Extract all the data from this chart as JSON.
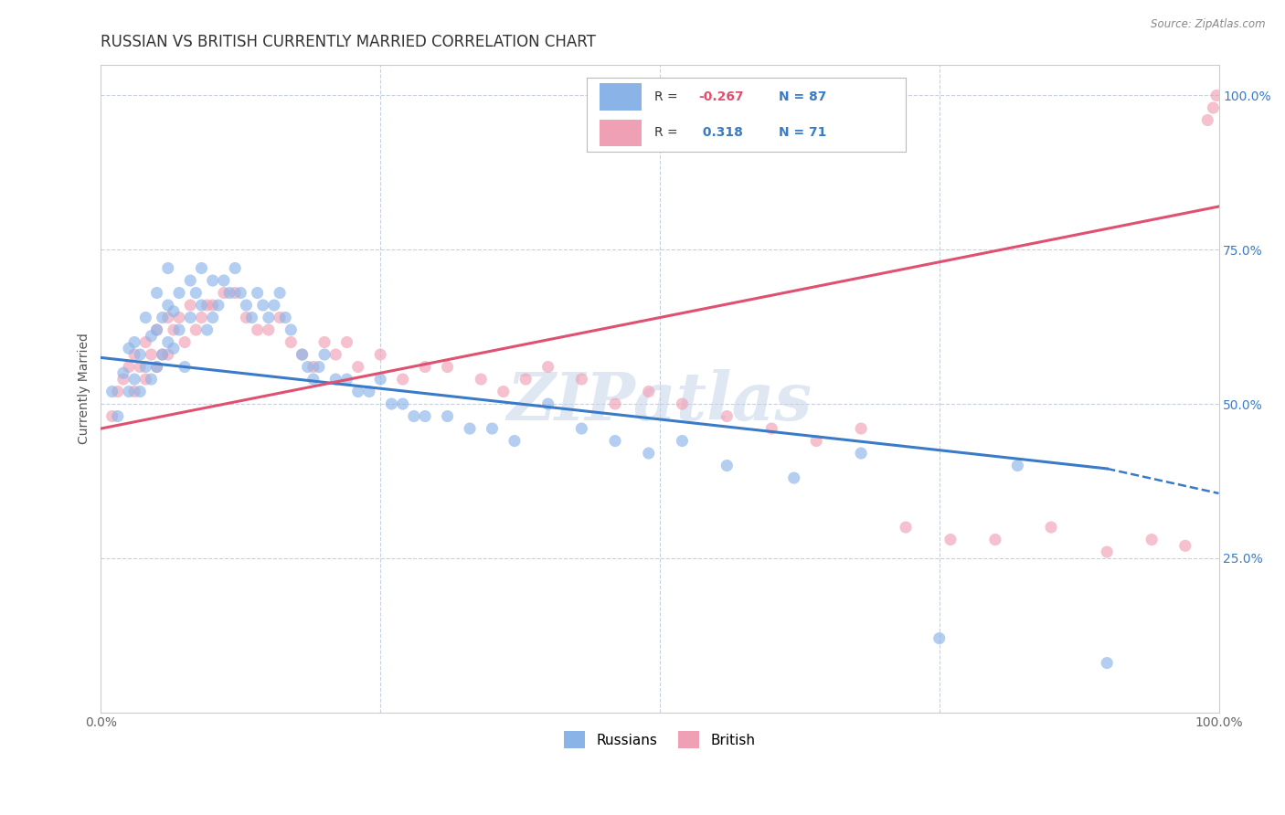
{
  "title": "RUSSIAN VS BRITISH CURRENTLY MARRIED CORRELATION CHART",
  "source": "Source: ZipAtlas.com",
  "ylabel": "Currently Married",
  "xlim": [
    0.0,
    1.0
  ],
  "ylim": [
    0.0,
    1.05
  ],
  "ytick_positions": [
    0.25,
    0.5,
    0.75,
    1.0
  ],
  "ytick_labels": [
    "25.0%",
    "50.0%",
    "75.0%",
    "100.0%"
  ],
  "xtick_positions": [
    0.0,
    0.25,
    0.5,
    0.75,
    1.0
  ],
  "xtick_labels": [
    "0.0%",
    "",
    "",
    "",
    "100.0%"
  ],
  "russian_color": "#8ab4e8",
  "british_color": "#f0a0b5",
  "russian_line_color": "#3a7bc8",
  "british_line_color": "#e05070",
  "watermark": "ZIPatlas",
  "background_color": "#ffffff",
  "grid_color": "#c8d0dc",
  "title_fontsize": 12,
  "tick_fontsize": 10,
  "dot_size": 90,
  "dot_alpha": 0.65,
  "russians_x": [
    0.01,
    0.015,
    0.02,
    0.025,
    0.025,
    0.03,
    0.03,
    0.035,
    0.035,
    0.04,
    0.04,
    0.045,
    0.045,
    0.05,
    0.05,
    0.05,
    0.055,
    0.055,
    0.06,
    0.06,
    0.06,
    0.065,
    0.065,
    0.07,
    0.07,
    0.075,
    0.08,
    0.08,
    0.085,
    0.09,
    0.09,
    0.095,
    0.1,
    0.1,
    0.105,
    0.11,
    0.115,
    0.12,
    0.125,
    0.13,
    0.135,
    0.14,
    0.145,
    0.15,
    0.155,
    0.16,
    0.165,
    0.17,
    0.18,
    0.185,
    0.19,
    0.195,
    0.2,
    0.21,
    0.22,
    0.23,
    0.24,
    0.25,
    0.26,
    0.27,
    0.28,
    0.29,
    0.31,
    0.33,
    0.35,
    0.37,
    0.4,
    0.43,
    0.46,
    0.49,
    0.52,
    0.56,
    0.62,
    0.68,
    0.75,
    0.82,
    0.9
  ],
  "russians_y": [
    0.52,
    0.48,
    0.55,
    0.59,
    0.52,
    0.6,
    0.54,
    0.58,
    0.52,
    0.64,
    0.56,
    0.61,
    0.54,
    0.68,
    0.62,
    0.56,
    0.64,
    0.58,
    0.72,
    0.66,
    0.6,
    0.65,
    0.59,
    0.68,
    0.62,
    0.56,
    0.7,
    0.64,
    0.68,
    0.72,
    0.66,
    0.62,
    0.7,
    0.64,
    0.66,
    0.7,
    0.68,
    0.72,
    0.68,
    0.66,
    0.64,
    0.68,
    0.66,
    0.64,
    0.66,
    0.68,
    0.64,
    0.62,
    0.58,
    0.56,
    0.54,
    0.56,
    0.58,
    0.54,
    0.54,
    0.52,
    0.52,
    0.54,
    0.5,
    0.5,
    0.48,
    0.48,
    0.48,
    0.46,
    0.46,
    0.44,
    0.5,
    0.46,
    0.44,
    0.42,
    0.44,
    0.4,
    0.38,
    0.42,
    0.12,
    0.4,
    0.08
  ],
  "british_x": [
    0.01,
    0.015,
    0.02,
    0.025,
    0.03,
    0.03,
    0.035,
    0.04,
    0.04,
    0.045,
    0.05,
    0.05,
    0.055,
    0.06,
    0.06,
    0.065,
    0.07,
    0.075,
    0.08,
    0.085,
    0.09,
    0.095,
    0.1,
    0.11,
    0.12,
    0.13,
    0.14,
    0.15,
    0.16,
    0.17,
    0.18,
    0.19,
    0.2,
    0.21,
    0.22,
    0.23,
    0.25,
    0.27,
    0.29,
    0.31,
    0.34,
    0.36,
    0.38,
    0.4,
    0.43,
    0.46,
    0.49,
    0.52,
    0.56,
    0.6,
    0.64,
    0.68,
    0.72,
    0.76,
    0.8,
    0.85,
    0.9,
    0.94,
    0.97,
    0.99,
    0.995,
    0.998
  ],
  "british_y": [
    0.48,
    0.52,
    0.54,
    0.56,
    0.58,
    0.52,
    0.56,
    0.6,
    0.54,
    0.58,
    0.56,
    0.62,
    0.58,
    0.64,
    0.58,
    0.62,
    0.64,
    0.6,
    0.66,
    0.62,
    0.64,
    0.66,
    0.66,
    0.68,
    0.68,
    0.64,
    0.62,
    0.62,
    0.64,
    0.6,
    0.58,
    0.56,
    0.6,
    0.58,
    0.6,
    0.56,
    0.58,
    0.54,
    0.56,
    0.56,
    0.54,
    0.52,
    0.54,
    0.56,
    0.54,
    0.5,
    0.52,
    0.5,
    0.48,
    0.46,
    0.44,
    0.46,
    0.3,
    0.28,
    0.28,
    0.3,
    0.26,
    0.28,
    0.27,
    0.96,
    0.98,
    1.0
  ],
  "trend_ru_x0": 0.0,
  "trend_ru_y0": 0.575,
  "trend_ru_x1": 0.9,
  "trend_ru_y1": 0.395,
  "trend_ru_dash_x1": 1.0,
  "trend_ru_dash_y1": 0.355,
  "trend_br_x0": 0.0,
  "trend_br_y0": 0.46,
  "trend_br_x1": 1.0,
  "trend_br_y1": 0.82
}
